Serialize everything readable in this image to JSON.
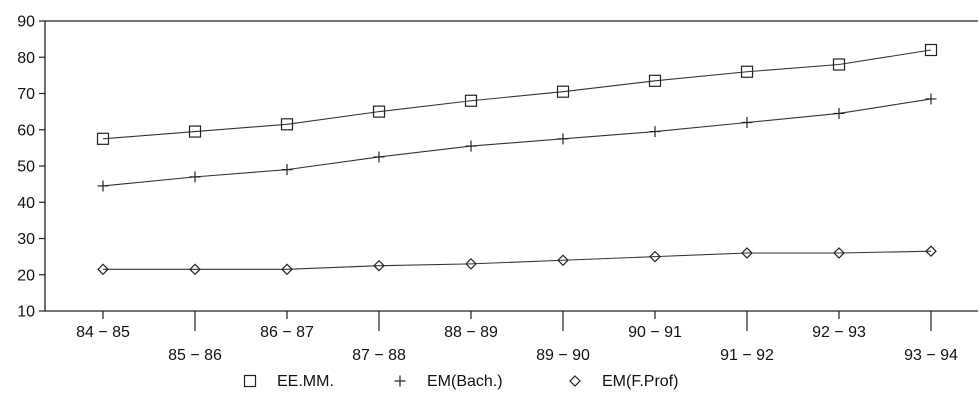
{
  "chart_data": {
    "type": "line",
    "categories": [
      "84-85",
      "85-86",
      "86-87",
      "87-88",
      "88-89",
      "89-90",
      "90-91",
      "91-92",
      "92-93",
      "93-94"
    ],
    "category_labels": [
      "84 − 85",
      "85 − 86",
      "86 − 87",
      "87 − 88",
      "88 − 89",
      "89 − 90",
      "90 − 91",
      "91 − 92",
      "92 − 93",
      "93 − 94"
    ],
    "ylim": [
      10,
      90
    ],
    "yticks": [
      10,
      20,
      30,
      40,
      50,
      60,
      70,
      80,
      90
    ],
    "grid": false,
    "legend_position": "bottom",
    "series": [
      {
        "name": "EE.MM.",
        "marker": "square",
        "values": [
          57.5,
          59.5,
          61.5,
          65,
          68,
          70.5,
          73.5,
          76,
          78,
          82
        ]
      },
      {
        "name": "EM(Bach.)",
        "marker": "plus",
        "values": [
          44.5,
          47,
          49,
          52.5,
          55.5,
          57.5,
          59.5,
          62,
          64.5,
          68.5
        ]
      },
      {
        "name": "EM(F.Prof)",
        "marker": "diamond",
        "values": [
          21.5,
          21.5,
          21.5,
          22.5,
          23,
          24,
          25,
          26,
          26,
          26.5
        ]
      }
    ],
    "colors": {
      "line": "#333333",
      "axis": "#222222"
    }
  }
}
